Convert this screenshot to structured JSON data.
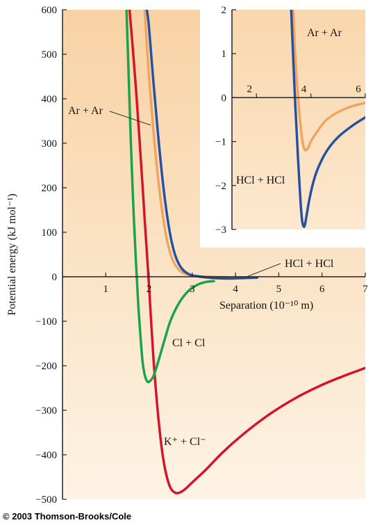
{
  "colors": {
    "background_gradient_top": "#f8d2a4",
    "background_gradient_bottom": "#fdf3e4",
    "panel_gradient_inner": "#fbe3c2",
    "ar_ar": "#f0a460",
    "hcl_hcl": "#2552a0",
    "cl_cl": "#1aa34a",
    "k_cl": "#d4142c"
  },
  "copyright": "© 2003 Thomson-Brooks/Cole",
  "chart_data": [
    {
      "type": "line",
      "ylabel": "Potential energy (kJ mol⁻¹)",
      "xlabel": "Separation (10⁻¹⁰ m)",
      "xlim": [
        0,
        7
      ],
      "ylim": [
        -500,
        600
      ],
      "xticks": [
        1,
        2,
        3,
        4,
        5,
        6,
        7
      ],
      "yticks": [
        600,
        500,
        400,
        300,
        200,
        100,
        0,
        -100,
        -200,
        -300,
        -400,
        -500
      ],
      "grid": false,
      "annotations": [
        "Ar + Ar",
        "HCl + HCl",
        "Cl + Cl",
        "K⁺ + Cl⁻"
      ],
      "series": [
        {
          "name": "K⁺ + Cl⁻",
          "color": "#d4142c",
          "x": [
            1.55,
            1.62,
            1.7,
            1.8,
            1.9,
            2.0,
            2.1,
            2.2,
            2.3,
            2.4,
            2.5,
            2.6,
            2.67,
            2.75,
            2.85,
            3.0,
            3.3,
            3.7,
            4.2,
            4.8,
            5.4,
            6.0,
            6.5,
            7.0
          ],
          "y": [
            600,
            520,
            420,
            280,
            130,
            -20,
            -180,
            -300,
            -390,
            -445,
            -475,
            -485,
            -486,
            -483,
            -476,
            -462,
            -435,
            -395,
            -352,
            -308,
            -272,
            -243,
            -223,
            -205
          ]
        },
        {
          "name": "Cl + Cl",
          "color": "#1aa34a",
          "x": [
            1.48,
            1.52,
            1.56,
            1.6,
            1.65,
            1.7,
            1.75,
            1.8,
            1.85,
            1.9,
            1.95,
            2.0,
            2.1,
            2.2,
            2.35,
            2.5,
            2.7,
            2.9,
            3.1,
            3.3,
            3.5
          ],
          "y": [
            600,
            480,
            360,
            250,
            130,
            30,
            -60,
            -130,
            -190,
            -220,
            -234,
            -236,
            -224,
            -195,
            -145,
            -98,
            -58,
            -33,
            -19,
            -12,
            -10
          ]
        },
        {
          "name": "Ar + Ar",
          "color": "#f0a460",
          "x": [
            1.9,
            1.95,
            2.0,
            2.05,
            2.1,
            2.2,
            2.3,
            2.4,
            2.5,
            2.6,
            2.7,
            2.8,
            3.0,
            3.2,
            3.4,
            3.6,
            3.8
          ],
          "y": [
            600,
            520,
            450,
            390,
            330,
            230,
            150,
            90,
            50,
            28,
            15,
            8,
            3,
            1,
            0,
            -1,
            -1
          ]
        },
        {
          "name": "HCl + HCl",
          "color": "#2552a0",
          "x": [
            1.95,
            2.0,
            2.1,
            2.2,
            2.3,
            2.4,
            2.5,
            2.6,
            2.7,
            2.8,
            2.9,
            3.0,
            3.2,
            3.5,
            3.8,
            4.2,
            4.5
          ],
          "y": [
            600,
            560,
            440,
            330,
            230,
            150,
            90,
            50,
            27,
            14,
            7,
            3,
            0,
            -3,
            -4,
            -3,
            -2
          ]
        }
      ]
    },
    {
      "type": "line",
      "xlim": [
        1.1,
        6
      ],
      "ylim": [
        -3,
        2
      ],
      "xticks": [
        2,
        4,
        6
      ],
      "yticks": [
        2,
        1,
        0,
        -1,
        -2,
        -3
      ],
      "annotations": [
        "Ar + Ar",
        "HCl + HCl"
      ],
      "series": [
        {
          "name": "Ar + Ar",
          "color": "#f0a460",
          "x": [
            3.35,
            3.4,
            3.45,
            3.5,
            3.55,
            3.6,
            3.65,
            3.7,
            3.75,
            3.8,
            3.9,
            4.0,
            4.2,
            4.5,
            4.8,
            5.2,
            5.6,
            6.0
          ],
          "y": [
            2.0,
            1.3,
            0.7,
            0.25,
            -0.15,
            -0.5,
            -0.8,
            -1.03,
            -1.15,
            -1.2,
            -1.14,
            -1.0,
            -0.8,
            -0.55,
            -0.4,
            -0.27,
            -0.18,
            -0.12
          ]
        },
        {
          "name": "HCl + HCl",
          "color": "#2552a0",
          "x": [
            3.28,
            3.33,
            3.38,
            3.43,
            3.48,
            3.53,
            3.58,
            3.63,
            3.68,
            3.73,
            3.78,
            3.85,
            3.95,
            4.1,
            4.3,
            4.6,
            5.0,
            5.5,
            6.0
          ],
          "y": [
            2.0,
            1.2,
            0.5,
            -0.2,
            -0.8,
            -1.4,
            -1.95,
            -2.45,
            -2.8,
            -2.93,
            -2.9,
            -2.65,
            -2.3,
            -1.9,
            -1.55,
            -1.2,
            -0.9,
            -0.65,
            -0.45
          ]
        }
      ]
    }
  ]
}
